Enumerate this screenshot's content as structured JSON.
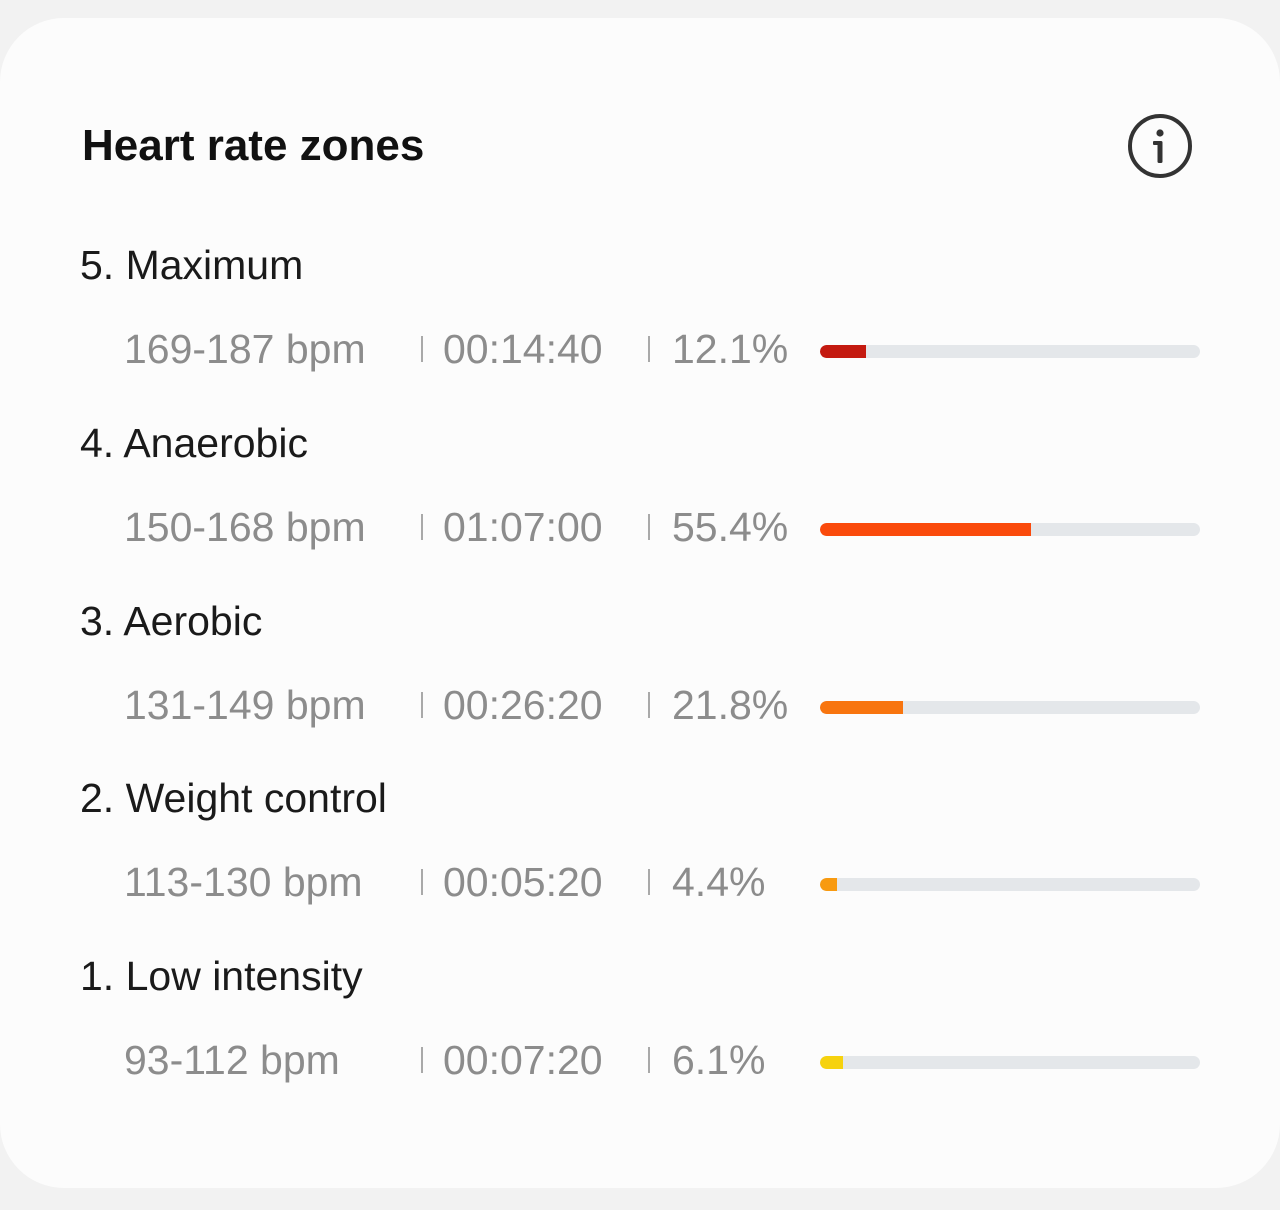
{
  "card": {
    "title": "Heart rate zones",
    "info_icon": "info-circle-icon"
  },
  "zones": [
    {
      "name": "5. Maximum",
      "bpm": "169-187 bpm",
      "duration": "00:14:40",
      "percent": "12.1%",
      "fraction": 0.121,
      "color": "#c41a10"
    },
    {
      "name": "4. Anaerobic",
      "bpm": "150-168 bpm",
      "duration": "01:07:00",
      "percent": "55.4%",
      "fraction": 0.554,
      "color": "#fa4a0c"
    },
    {
      "name": "3. Aerobic",
      "bpm": "131-149 bpm",
      "duration": "00:26:20",
      "percent": "21.8%",
      "fraction": 0.218,
      "color": "#f8750f"
    },
    {
      "name": "2. Weight control",
      "bpm": "113-130 bpm",
      "duration": "00:05:20",
      "percent": "4.4%",
      "fraction": 0.044,
      "color": "#f89a10"
    },
    {
      "name": "1. Low intensity",
      "bpm": "93-112 bpm",
      "duration": "00:07:20",
      "percent": "6.1%",
      "fraction": 0.061,
      "color": "#f6d20e"
    }
  ]
}
